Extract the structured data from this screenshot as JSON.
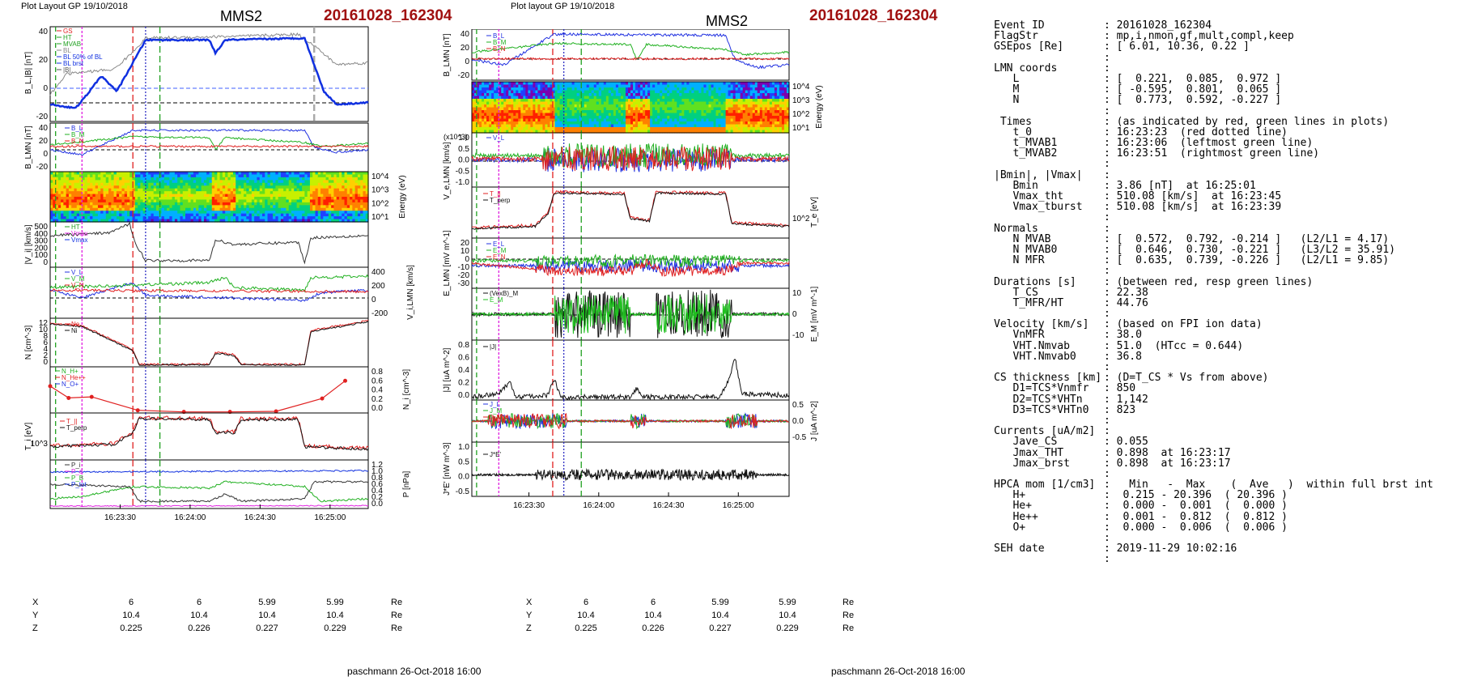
{
  "left_panel": {
    "layout_label": "Plot Layout GP 19/10/2018",
    "spacecraft": "MMS2",
    "event_id": "20161028_162304",
    "time_ticks": [
      "16:23:30",
      "16:24:00",
      "16:24:30",
      "16:25:00"
    ],
    "coords": {
      "labels": [
        "X",
        "Y",
        "Z"
      ],
      "unit": "Re",
      "rows": [
        [
          "6",
          "6",
          "5.99",
          "5.99"
        ],
        [
          "10.4",
          "10.4",
          "10.4",
          "10.4"
        ],
        [
          "0.225",
          "0.226",
          "0.227",
          "0.229"
        ]
      ]
    },
    "footer": "paschmann 26-Oct-2018 16:00",
    "panels": [
      {
        "ylabel": "B_L,|B| [nT]",
        "ticks": [
          "40",
          "20",
          "0",
          "-20"
        ],
        "legend": [
          "GS",
          "HT",
          "MVAB",
          "BL",
          "BL 50% of BL",
          "BL brst",
          "|B|"
        ]
      },
      {
        "ylabel": "B_LMN [nT]",
        "ticks": [
          "40",
          "20",
          "0",
          "-20"
        ],
        "legend": [
          "B_L",
          "B_M",
          "B_N"
        ]
      },
      {
        "ylabel": "Energy (eV)",
        "ticks": [
          "10^4",
          "10^3",
          "10^2",
          "10^1"
        ]
      },
      {
        "ylabel": "|V_i| [km/s]",
        "ticks": [
          "500",
          "400",
          "300",
          "200",
          "100",
          "0"
        ],
        "legend": [
          "HT",
          "Vmax",
          "Vmax"
        ]
      },
      {
        "ylabel": "V_i,LMN [km/s]",
        "ticks": [
          "400",
          "200",
          "0",
          "-200"
        ],
        "legend": [
          "V_L",
          "V_M",
          "V_N"
        ]
      },
      {
        "ylabel": "N [cm^-3]",
        "ticks": [
          "12",
          "10",
          "8",
          "6",
          "4",
          "2",
          "0"
        ],
        "legend": [
          "Ne",
          "Ni"
        ]
      },
      {
        "ylabel": "N_i [cm^-3]",
        "ticks": [
          "0.8",
          "0.6",
          "0.4",
          "0.2",
          "0.0"
        ],
        "legend": [
          "N_H+",
          "N_He++",
          "N_O+"
        ]
      },
      {
        "ylabel": "T_i [eV]",
        "ticks": [
          "10^3"
        ],
        "legend": [
          "T_||",
          "T_perp"
        ]
      },
      {
        "ylabel": "P [nPa]",
        "ticks": [
          "1.2",
          "1.0",
          "0.8",
          "0.6",
          "0.4",
          "0.2",
          "0.0"
        ],
        "legend": [
          "P_i",
          "P_e",
          "P_B",
          "P_tot"
        ]
      }
    ]
  },
  "right_panel": {
    "layout_label": "Plot layout GP 19/10/2018",
    "spacecraft": "MMS2",
    "event_id": "20161028_162304",
    "time_ticks": [
      "16:23:30",
      "16:24:00",
      "16:24:30",
      "16:25:00"
    ],
    "coords": {
      "labels": [
        "X",
        "Y",
        "Z"
      ],
      "unit": "Re",
      "rows": [
        [
          "6",
          "6",
          "5.99",
          "5.99"
        ],
        [
          "10.4",
          "10.4",
          "10.4",
          "10.4"
        ],
        [
          "0.225",
          "0.226",
          "0.227",
          "0.229"
        ]
      ]
    },
    "footer": "paschmann 26-Oct-2018 16:00",
    "panels": [
      {
        "ylabel": "B_LMN [nT]",
        "ticks": [
          "40",
          "20",
          "0",
          "-20"
        ],
        "legend": [
          "B_L",
          "B_M",
          "B_N"
        ]
      },
      {
        "ylabel": "Energy (eV)",
        "ticks": [
          "10^4",
          "10^3",
          "10^2",
          "10^1"
        ]
      },
      {
        "ylabel": "V_e,LMN [km/s]",
        "scale": "(x10^3)",
        "ticks": [
          "1.0",
          "0.5",
          "0.0",
          "-0.5",
          "-1.0"
        ],
        "legend": [
          "V_L"
        ]
      },
      {
        "ylabel": "T_e [eV]",
        "ticks": [
          "10^2"
        ],
        "legend": [
          "T_||",
          "T_perp"
        ]
      },
      {
        "ylabel": "E_LMN [mV m^-1]",
        "ticks": [
          "20",
          "10",
          "0",
          "-10",
          "-20",
          "-30"
        ],
        "legend": [
          "E_L",
          "E_M",
          "E_N"
        ]
      },
      {
        "ylabel": "E_M [mV m^-1]",
        "ticks": [
          "10",
          "0",
          "-10"
        ],
        "legend": [
          "(VexB)_M",
          "E_M"
        ]
      },
      {
        "ylabel": "|J| [uA m^-2]",
        "ticks": [
          "0.8",
          "0.6",
          "0.4",
          "0.2",
          "0.0"
        ],
        "legend": [
          "|J|"
        ]
      },
      {
        "ylabel": "J [uA m^-2]",
        "ticks": [
          "0.5",
          "0.0",
          "-0.5"
        ],
        "legend": [
          "J_L",
          "J_M",
          "J_N"
        ]
      },
      {
        "ylabel": "J*E' [nW m^-3]",
        "ticks": [
          "1.0",
          "0.5",
          "0.0",
          "-0.5"
        ],
        "legend": [
          "J*E'"
        ]
      }
    ]
  },
  "info_table": [
    [
      "Event ID",
      ": 20161028_162304"
    ],
    [
      "FlagStr",
      ": mp,i,nmon,gf,mult,compl,keep"
    ],
    [
      "GSEpos [Re]",
      ": [ 6.01, 10.36, 0.22 ]"
    ],
    [
      "",
      ":"
    ],
    [
      "LMN coords",
      ":"
    ],
    [
      "   L",
      ": [  0.221,  0.085,  0.972 ]"
    ],
    [
      "   M",
      ": [ -0.595,  0.801,  0.065 ]"
    ],
    [
      "   N",
      ": [  0.773,  0.592, -0.227 ]"
    ],
    [
      "",
      ":"
    ],
    [
      " Times",
      ": (as indicated by red, green lines in plots)"
    ],
    [
      "   t_0",
      ": 16:23:23  (red dotted line)"
    ],
    [
      "   t_MVAB1",
      ": 16:23:06  (leftmost green line)"
    ],
    [
      "   t_MVAB2",
      ": 16:23:51  (rightmost green line)"
    ],
    [
      "",
      ":"
    ],
    [
      "|Bmin|, |Vmax|",
      ":"
    ],
    [
      "   Bmin",
      ": 3.86 [nT]  at 16:25:01"
    ],
    [
      "   Vmax_tht",
      ": 510.08 [km/s]  at 16:23:45"
    ],
    [
      "   Vmax_tburst",
      ": 510.08 [km/s]  at 16:23:39"
    ],
    [
      "",
      ":"
    ],
    [
      "Normals",
      ":"
    ],
    [
      "   N MVAB",
      ": [  0.572,  0.792, -0.214 ]   (L2/L1 = 4.17)"
    ],
    [
      "   N MVAB0",
      ": [  0.646,  0.730, -0.221 ]   (L3/L2 = 35.91)"
    ],
    [
      "   N MFR",
      ": [  0.635,  0.739, -0.226 ]   (L2/L1 = 9.85)"
    ],
    [
      "",
      ":"
    ],
    [
      "Durations [s]",
      ": (between red, resp green lines)"
    ],
    [
      "   T_CS",
      ": 22.38"
    ],
    [
      "   T_MFR/HT",
      ": 44.76"
    ],
    [
      "",
      ":"
    ],
    [
      "Velocity [km/s]",
      ": (based on FPI ion data)"
    ],
    [
      "   VnMFR",
      ": 38.0"
    ],
    [
      "   VHT.Nmvab",
      ": 51.0  (HTcc = 0.644)"
    ],
    [
      "   VHT.Nmvab0",
      ": 36.8"
    ],
    [
      "",
      ":"
    ],
    [
      "CS thickness [km]",
      ": (D=T_CS * Vs from above)"
    ],
    [
      "   D1=TCS*Vnmfr",
      ": 850"
    ],
    [
      "   D2=TCS*VHTn",
      ": 1,142"
    ],
    [
      "   D3=TCS*VHTn0",
      ": 823"
    ],
    [
      "",
      ":"
    ],
    [
      "Currents [uA/m2]",
      ":"
    ],
    [
      "   Jave_CS",
      ": 0.055"
    ],
    [
      "   Jmax_THT",
      ": 0.898  at 16:23:17"
    ],
    [
      "   Jmax_brst",
      ": 0.898  at 16:23:17"
    ],
    [
      "",
      ":"
    ],
    [
      "HPCA mom [1/cm3]",
      ":   Min   -  Max    (  Ave   )  within full brst int"
    ],
    [
      "   H+",
      ":  0.215 - 20.396  ( 20.396 )"
    ],
    [
      "   He+",
      ":  0.000 -  0.001  (  0.000 )"
    ],
    [
      "   He++",
      ":  0.001 -  0.812  (  0.812 )"
    ],
    [
      "   O+",
      ":  0.000 -  0.006  (  0.006 )"
    ],
    [
      "",
      ":"
    ],
    [
      "SEH date",
      ": 2019-11-29 10:02:16"
    ],
    [
      "",
      ":"
    ]
  ],
  "chart_data": [
    {
      "type": "line",
      "title": "MMS2 20161028_162304",
      "time_range": [
        "16:23:02",
        "16:25:20"
      ],
      "ylabel": "B_L,|B| [nT]",
      "ylim": [
        -30,
        45
      ],
      "series": [
        {
          "name": "BL",
          "x": [
            "16:23:02",
            "16:23:10",
            "16:23:16",
            "16:23:22",
            "16:23:30",
            "16:23:38",
            "16:23:45",
            "16:24:00",
            "16:24:30",
            "16:24:45",
            "16:24:55",
            "16:25:05",
            "16:25:20"
          ],
          "y": [
            -20,
            -24,
            -5,
            10,
            -5,
            20,
            38,
            38,
            37,
            38,
            40,
            -5,
            -2
          ]
        },
        {
          "name": "|B|",
          "x": [
            "16:23:02",
            "16:23:10",
            "16:23:20",
            "16:23:40",
            "16:24:30",
            "16:24:55",
            "16:25:05",
            "16:25:20"
          ],
          "y": [
            25,
            26,
            22,
            38,
            38,
            42,
            22,
            12
          ]
        }
      ]
    },
    {
      "type": "line",
      "ylabel": "|V_i| [km/s]",
      "ylim": [
        0,
        520
      ],
      "series": [
        {
          "name": "|Vi|",
          "x": [
            "16:23:02",
            "16:23:20",
            "16:23:35",
            "16:23:45",
            "16:23:50",
            "16:24:20",
            "16:24:30",
            "16:24:55",
            "16:25:00",
            "16:25:20"
          ],
          "y": [
            360,
            380,
            450,
            500,
            90,
            80,
            280,
            250,
            60,
            360
          ]
        }
      ]
    },
    {
      "type": "scatter",
      "ylabel": "N_i [cm^-3]",
      "ylim": [
        0,
        0.8
      ],
      "series": [
        {
          "name": "N He++",
          "x": [
            "16:23:02",
            "16:23:10",
            "16:23:20",
            "16:23:40",
            "16:24:00",
            "16:24:20",
            "16:24:40",
            "16:25:00",
            "16:25:10"
          ],
          "y": [
            0.5,
            0.28,
            0.3,
            0.05,
            0.02,
            0.02,
            0.03,
            0.27,
            0.6
          ]
        }
      ]
    }
  ]
}
